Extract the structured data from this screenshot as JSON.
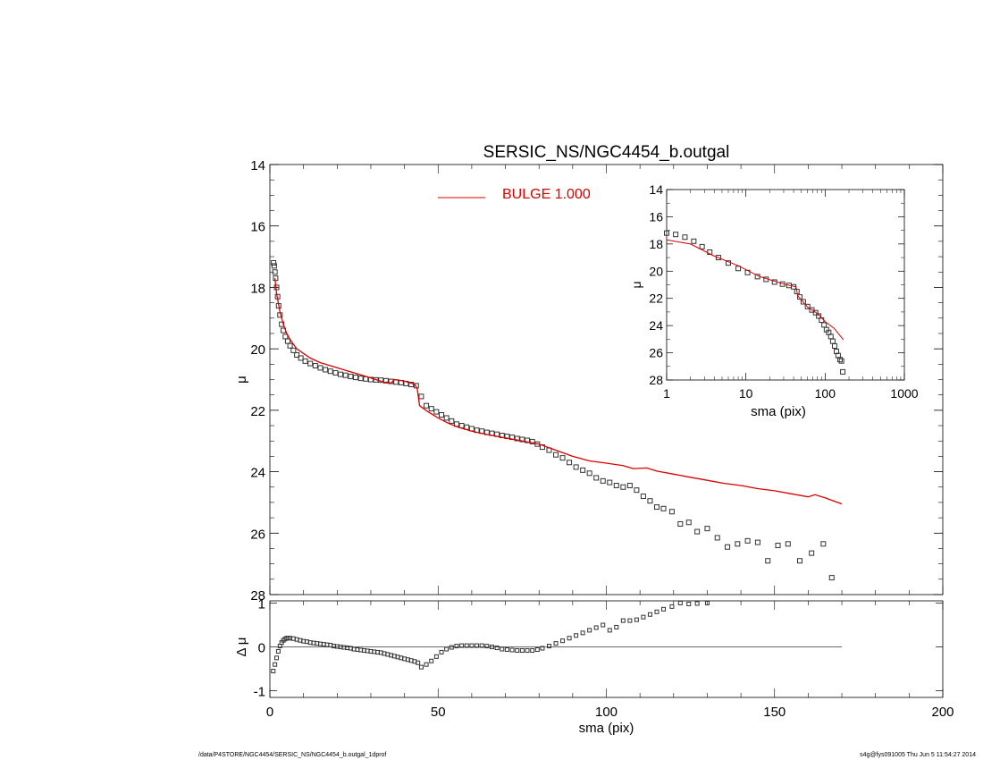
{
  "chart_data": [
    {
      "id": "main",
      "type": "scatter",
      "title": "SERSIC_NS/NGC4454_b.outgal",
      "xlabel": "",
      "ylabel": "μ",
      "xlim": [
        0,
        200
      ],
      "ylim": [
        28,
        14
      ],
      "y_inverted": true,
      "x_ticks": [
        0,
        50,
        100,
        150,
        200
      ],
      "y_ticks": [
        14,
        16,
        18,
        20,
        22,
        24,
        26,
        28
      ],
      "legend": {
        "label": "BULGE  1.000",
        "placement": "top-center",
        "color": "#dd0000"
      },
      "series": [
        {
          "role": "data",
          "marker": "open-square",
          "color": "#333333",
          "x": [
            1.1,
            1.3,
            1.5,
            1.7,
            2.0,
            2.3,
            2.6,
            3.0,
            3.5,
            4.0,
            4.6,
            5.3,
            6.0,
            7.0,
            8.0,
            9.2,
            10.5,
            12.0,
            13.5,
            15.0,
            16.5,
            18.0,
            19.5,
            21.0,
            22.5,
            24.0,
            25.5,
            27.0,
            28.5,
            30.0,
            31.5,
            33.0,
            34.5,
            36.0,
            37.5,
            39.0,
            40.5,
            42.0,
            43.5,
            45.0,
            46.5,
            48.0,
            49.5,
            51.0,
            52.5,
            54.0,
            55.5,
            57.0,
            58.5,
            60.0,
            61.5,
            63.0,
            64.5,
            66.0,
            67.5,
            69.0,
            70.5,
            72.0,
            73.5,
            75.0,
            76.5,
            78.0,
            79.5,
            81.0,
            83.0,
            85.0,
            87.0,
            89.0,
            91.0,
            93.0,
            95.0,
            97.0,
            99.0,
            101.0,
            103.0,
            105.0,
            107.0,
            109.0,
            111.0,
            113.0,
            115.0,
            117.0,
            119.5,
            122.0,
            124.5,
            127.0,
            130.0,
            133.0,
            136.0,
            139.0,
            142.0,
            145.0,
            148.0,
            151.0,
            154.0,
            157.5,
            161.0,
            164.5,
            167.0
          ],
          "y": [
            17.2,
            17.3,
            17.5,
            17.7,
            18.0,
            18.3,
            18.6,
            18.9,
            19.2,
            19.4,
            19.6,
            19.75,
            19.9,
            20.05,
            20.2,
            20.3,
            20.4,
            20.48,
            20.55,
            20.62,
            20.68,
            20.73,
            20.78,
            20.83,
            20.86,
            20.9,
            20.93,
            20.96,
            20.98,
            21.0,
            21.01,
            21.02,
            21.04,
            21.06,
            21.08,
            21.1,
            21.13,
            21.16,
            21.2,
            21.55,
            21.85,
            21.95,
            22.05,
            22.15,
            22.25,
            22.35,
            22.45,
            22.5,
            22.55,
            22.6,
            22.65,
            22.68,
            22.72,
            22.75,
            22.78,
            22.82,
            22.85,
            22.88,
            22.92,
            22.95,
            22.98,
            23.02,
            23.1,
            23.2,
            23.3,
            23.45,
            23.55,
            23.7,
            23.85,
            23.95,
            24.05,
            24.2,
            24.3,
            24.35,
            24.45,
            24.5,
            24.45,
            24.6,
            24.8,
            24.95,
            25.15,
            25.2,
            25.3,
            25.7,
            25.65,
            25.95,
            25.85,
            26.15,
            26.45,
            26.35,
            26.25,
            26.3,
            26.9,
            26.4,
            26.35,
            26.9,
            26.65,
            26.35,
            27.45
          ]
        },
        {
          "role": "model",
          "name": "BULGE  1.000",
          "color": "#dd0000",
          "x": [
            1.5,
            2.0,
            3.0,
            4.0,
            5.0,
            6.0,
            8.0,
            10.0,
            12.0,
            15.0,
            18.0,
            21.0,
            24.0,
            27.0,
            30.0,
            33.0,
            34.0,
            35.0,
            36.0,
            37.0,
            40.0,
            43.0,
            43.8,
            44.5,
            47.0,
            50.0,
            53.0,
            56.0,
            60.0,
            65.0,
            70.0,
            75.0,
            80.0,
            85.0,
            90.0,
            95.0,
            100.0,
            105.0,
            108.0,
            112.0,
            115.0,
            120.0,
            125.0,
            130.0,
            135.0,
            140.0,
            145.0,
            150.0,
            155.0,
            160.0,
            162.0,
            165.0,
            170.0
          ],
          "y": [
            17.7,
            18.2,
            18.8,
            19.2,
            19.5,
            19.7,
            20.0,
            20.15,
            20.3,
            20.45,
            20.55,
            20.65,
            20.75,
            20.85,
            20.95,
            21.05,
            21.1,
            21.08,
            21.12,
            21.0,
            21.05,
            21.15,
            21.3,
            21.85,
            22.05,
            22.25,
            22.42,
            22.55,
            22.68,
            22.8,
            22.9,
            23.0,
            23.1,
            23.3,
            23.5,
            23.65,
            23.72,
            23.8,
            23.9,
            23.88,
            23.98,
            24.08,
            24.18,
            24.28,
            24.38,
            24.45,
            24.55,
            24.62,
            24.72,
            24.82,
            24.75,
            24.85,
            25.05
          ]
        }
      ]
    },
    {
      "id": "inset",
      "type": "scatter",
      "xscale": "log",
      "title": "",
      "xlabel": "sma (pix)",
      "ylabel": "μ",
      "xlim": [
        1,
        1000
      ],
      "ylim": [
        28,
        14
      ],
      "y_inverted": true,
      "x_ticks": [
        1,
        10,
        100,
        1000
      ],
      "x_tick_labels": [
        "1",
        "10",
        "100",
        "1000"
      ],
      "y_ticks": [
        14,
        16,
        18,
        20,
        22,
        24,
        26,
        28
      ],
      "series": [
        {
          "role": "data",
          "marker": "open-square",
          "color": "#333333",
          "x": [
            1.0,
            1.3,
            1.7,
            2.2,
            2.8,
            3.5,
            4.5,
            6.0,
            8.0,
            10.5,
            14.0,
            18.0,
            23.0,
            29.0,
            35.0,
            40.0,
            44.0,
            48.0,
            53.0,
            60.0,
            68.0,
            76.0,
            83.0,
            90.0,
            97.0,
            104.0,
            111.0,
            118.0,
            125.0,
            132.0,
            139.0,
            146.0,
            154.0,
            161.0,
            167.0
          ],
          "y": [
            17.2,
            17.3,
            17.5,
            17.8,
            18.2,
            18.6,
            19.0,
            19.4,
            19.8,
            20.1,
            20.4,
            20.6,
            20.8,
            20.95,
            21.05,
            21.15,
            21.5,
            21.9,
            22.25,
            22.6,
            22.85,
            23.05,
            23.3,
            23.6,
            23.95,
            24.3,
            24.5,
            24.8,
            25.15,
            25.5,
            25.9,
            26.2,
            26.5,
            26.6,
            27.4
          ]
        },
        {
          "role": "model",
          "color": "#dd0000",
          "x": [
            1.0,
            2.0,
            4.0,
            8.0,
            15.0,
            30.0,
            43.0,
            45.0,
            60.0,
            80.0,
            100.0,
            130.0,
            170.0
          ],
          "y": [
            17.7,
            18.0,
            18.9,
            19.6,
            20.4,
            20.95,
            21.15,
            21.8,
            22.65,
            23.1,
            23.7,
            24.2,
            25.05
          ]
        }
      ]
    },
    {
      "id": "residual",
      "type": "scatter",
      "title": "",
      "xlabel": "sma (pix)",
      "ylabel": "Δ μ",
      "xlim": [
        0,
        200
      ],
      "ylim": [
        -1,
        1
      ],
      "x_ticks": [
        0,
        50,
        100,
        150,
        200
      ],
      "y_ticks": [
        -1,
        0,
        1
      ],
      "zero_line": true,
      "series": [
        {
          "role": "residual",
          "marker": "open-square",
          "color": "#333333",
          "x": [
            1.0,
            1.5,
            2.0,
            2.5,
            3.0,
            3.5,
            4.0,
            4.5,
            5.0,
            5.5,
            6.0,
            7.0,
            8.0,
            9.0,
            10.0,
            11.0,
            12.0,
            13.0,
            14.0,
            15.0,
            16.0,
            17.0,
            18.0,
            19.0,
            20.0,
            21.0,
            22.0,
            23.0,
            24.0,
            25.0,
            26.0,
            27.0,
            28.0,
            29.0,
            30.0,
            31.0,
            32.0,
            33.0,
            34.0,
            35.0,
            36.0,
            37.0,
            38.0,
            39.0,
            40.0,
            41.0,
            42.0,
            43.0,
            44.0,
            45.0,
            46.5,
            48.0,
            49.5,
            51.0,
            52.5,
            54.0,
            55.5,
            57.0,
            58.5,
            60.0,
            61.5,
            63.0,
            64.5,
            66.0,
            67.5,
            69.0,
            70.5,
            72.0,
            73.5,
            75.0,
            76.5,
            78.0,
            79.5,
            81.0,
            83.0,
            85.0,
            87.0,
            89.0,
            91.0,
            93.0,
            95.0,
            97.0,
            99.0,
            101.0,
            103.0,
            105.0,
            107.0,
            109.0,
            111.0,
            113.0,
            115.0,
            117.0,
            119.5,
            122.0,
            124.5,
            127.0,
            130.0
          ],
          "y": [
            -0.55,
            -0.4,
            -0.25,
            -0.1,
            0.02,
            0.1,
            0.15,
            0.18,
            0.2,
            0.2,
            0.2,
            0.19,
            0.17,
            0.15,
            0.13,
            0.12,
            0.1,
            0.09,
            0.08,
            0.07,
            0.06,
            0.05,
            0.04,
            0.02,
            0.01,
            0.0,
            -0.01,
            -0.02,
            -0.03,
            -0.05,
            -0.06,
            -0.07,
            -0.08,
            -0.09,
            -0.1,
            -0.11,
            -0.12,
            -0.13,
            -0.15,
            -0.17,
            -0.19,
            -0.21,
            -0.23,
            -0.25,
            -0.27,
            -0.29,
            -0.31,
            -0.33,
            -0.36,
            -0.46,
            -0.4,
            -0.32,
            -0.22,
            -0.12,
            -0.05,
            -0.01,
            0.02,
            0.03,
            0.03,
            0.03,
            0.03,
            0.03,
            0.02,
            0.0,
            -0.02,
            -0.05,
            -0.06,
            -0.07,
            -0.08,
            -0.08,
            -0.08,
            -0.08,
            -0.06,
            -0.03,
            0.02,
            0.08,
            0.14,
            0.2,
            0.26,
            0.32,
            0.38,
            0.44,
            0.5,
            0.38,
            0.45,
            0.6,
            0.6,
            0.62,
            0.68,
            0.74,
            0.8,
            0.86,
            0.92,
            1.0,
            0.98,
            0.99,
            1.0
          ]
        }
      ]
    }
  ],
  "footer": {
    "left": "/data/P4STORE/NGC4454/SERSIC_NS/NGC4454_b.outgal_1dprof",
    "right": "s4g@fys091005  Thu Jun  5 11:54:27 2014"
  }
}
